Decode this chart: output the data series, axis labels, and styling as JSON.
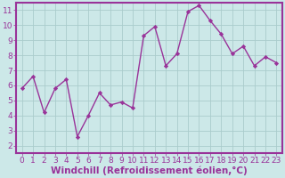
{
  "x": [
    0,
    1,
    2,
    3,
    4,
    5,
    6,
    7,
    8,
    9,
    10,
    11,
    12,
    13,
    14,
    15,
    16,
    17,
    18,
    19,
    20,
    21,
    22,
    23
  ],
  "y": [
    5.8,
    6.6,
    4.2,
    5.8,
    6.4,
    2.6,
    4.0,
    5.5,
    4.7,
    4.9,
    4.5,
    9.3,
    9.9,
    7.3,
    8.1,
    10.9,
    11.3,
    10.3,
    9.4,
    8.1,
    8.6,
    7.3,
    7.9,
    7.5
  ],
  "line_color": "#993399",
  "marker": "D",
  "marker_size": 2.2,
  "bg_color": "#cce8e8",
  "plot_bg_color": "#cce8e8",
  "grid_color": "#aacccc",
  "xlabel": "Windchill (Refroidissement éolien,°C)",
  "ylabel": "",
  "xlim": [
    -0.5,
    23.5
  ],
  "ylim": [
    1.5,
    11.5
  ],
  "yticks": [
    2,
    3,
    4,
    5,
    6,
    7,
    8,
    9,
    10,
    11
  ],
  "xticks": [
    0,
    1,
    2,
    3,
    4,
    5,
    6,
    7,
    8,
    9,
    10,
    11,
    12,
    13,
    14,
    15,
    16,
    17,
    18,
    19,
    20,
    21,
    22,
    23
  ],
  "tick_color": "#993399",
  "label_color": "#993399",
  "spine_color": "#993399",
  "spine_bg": "#993399",
  "font_size": 6.5,
  "xlabel_fontsize": 7.5,
  "line_width": 1.0
}
